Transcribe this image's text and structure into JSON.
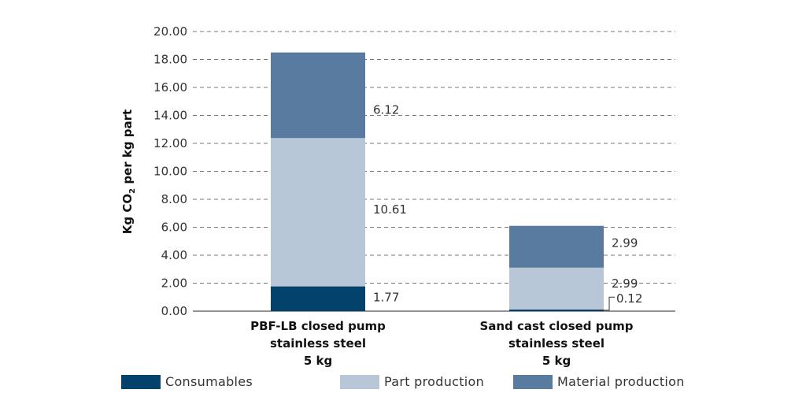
{
  "chart_data": {
    "type": "bar",
    "stacked": true,
    "ylabel_parts": [
      "Kg CO",
      "2",
      " per kg part"
    ],
    "ylim": [
      0,
      20
    ],
    "yticks": [
      "0.00",
      "2.00",
      "4.00",
      "6.00",
      "8.00",
      "10.00",
      "12.00",
      "14.00",
      "16.00",
      "18.00",
      "20.00"
    ],
    "grid": true,
    "legend_position": "bottom",
    "categories": [
      [
        "PBF-LB closed pump",
        "stainless steel",
        "5 kg"
      ],
      [
        "Sand cast closed pump",
        "stainless steel",
        "5 kg"
      ]
    ],
    "series": [
      {
        "name": "Consumables",
        "color": "#03436b",
        "values": [
          1.77,
          0.12
        ],
        "labels": [
          "1.77",
          "0.12"
        ]
      },
      {
        "name": "Part production",
        "color": "#b8c7d8",
        "values": [
          10.61,
          2.99
        ],
        "labels": [
          "10.61",
          "2.99"
        ]
      },
      {
        "name": "Material production",
        "color": "#5a7ba0",
        "values": [
          6.12,
          2.99
        ],
        "labels": [
          "6.12",
          "2.99"
        ]
      }
    ]
  }
}
